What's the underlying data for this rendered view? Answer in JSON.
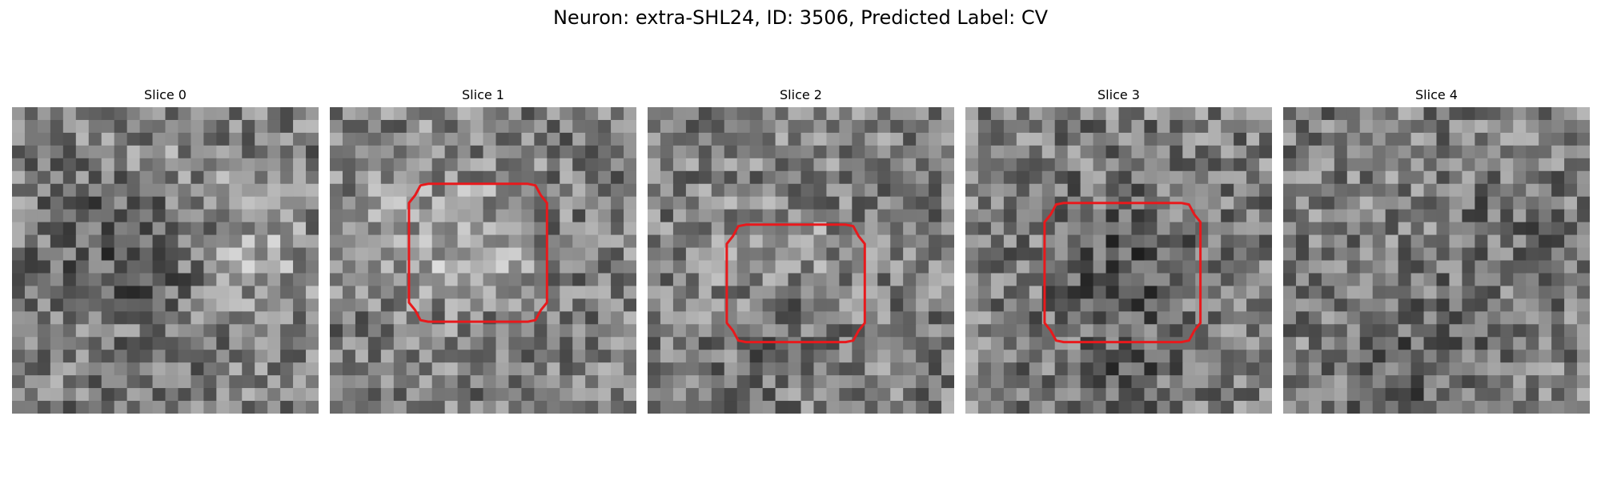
{
  "figure": {
    "title": "Neuron: extra-SHL24, ID: 3506, Predicted Label: CV"
  },
  "slices": [
    {
      "label": "Slice 0",
      "contour": false
    },
    {
      "label": "Slice 1",
      "contour": true
    },
    {
      "label": "Slice 2",
      "contour": true
    },
    {
      "label": "Slice 3",
      "contour": true
    },
    {
      "label": "Slice 4",
      "contour": false
    }
  ],
  "colors": {
    "contour": "#e8191c",
    "background": "#ffffff"
  },
  "image": {
    "grid_cells": 24,
    "colormap": "grayscale"
  }
}
